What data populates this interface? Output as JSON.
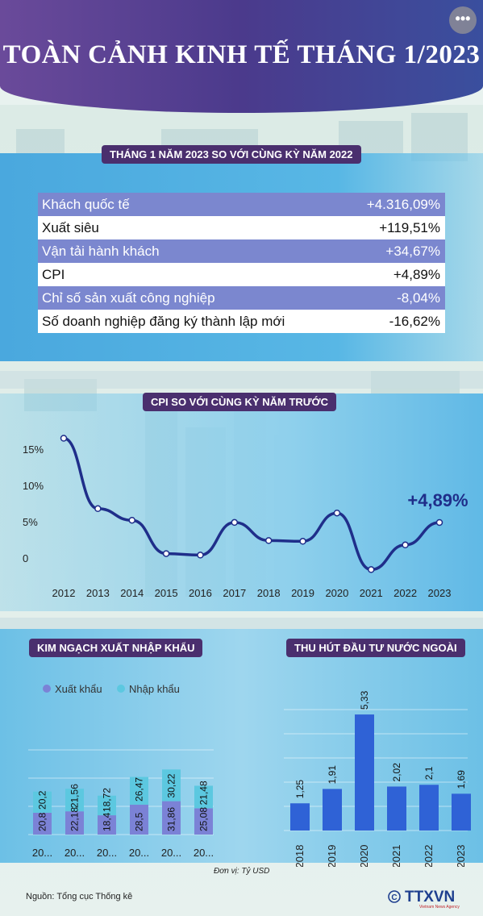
{
  "header": {
    "title": "TOÀN CẢNH KINH TẾ THÁNG 1/2023",
    "more_icon": "more-options-icon"
  },
  "summary": {
    "heading": "THÁNG 1 NĂM 2023 SO VỚI CÙNG KỲ NĂM 2022",
    "rows": [
      {
        "label": "Khách quốc tế",
        "value": "+4.316,09%"
      },
      {
        "label": "Xuất siêu",
        "value": "+119,51%"
      },
      {
        "label": "Vận tải hành khách",
        "value": "+34,67%"
      },
      {
        "label": "CPI",
        "value": "+4,89%"
      },
      {
        "label": "Chỉ số sản xuất công nghiệp",
        "value": "-8,04%"
      },
      {
        "label": "Số doanh nghiệp đăng ký thành lập mới",
        "value": "-16,62%"
      }
    ]
  },
  "chart_data": [
    {
      "type": "line",
      "title": "CPI SO VỚI CÙNG KỲ NĂM TRƯỚC",
      "x": [
        "2012",
        "2013",
        "2014",
        "2015",
        "2016",
        "2017",
        "2018",
        "2019",
        "2020",
        "2021",
        "2022",
        "2023"
      ],
      "series": [
        {
          "values": [
            16.5,
            6.8,
            5.2,
            0.6,
            0.4,
            4.9,
            2.4,
            2.3,
            6.2,
            -1.6,
            1.8,
            4.89
          ],
          "color": "#1f2e8a"
        }
      ],
      "yticks": [
        "15%",
        "10%",
        "5%",
        "0"
      ],
      "ylim": [
        -2,
        18
      ],
      "highlight_label": "+4,89%",
      "grid": false
    },
    {
      "type": "bar",
      "stacked": true,
      "title": "KIM NGẠCH XUẤT NHẬP KHẨU",
      "categories": [
        "20...",
        "20...",
        "20...",
        "20...",
        "20...",
        "20..."
      ],
      "series": [
        {
          "name": "Xuất khẩu",
          "values": [
            20.8,
            22.18,
            18.4,
            28.5,
            31.86,
            25.08
          ],
          "labels": [
            "20,8",
            "22,18",
            "18,4",
            "28,5",
            "31,86",
            "25,08"
          ],
          "color": "#7b82d6"
        },
        {
          "name": "Nhập khẩu",
          "values": [
            20.2,
            21.56,
            18.72,
            26.47,
            30.22,
            21.48
          ],
          "labels": [
            "20,2",
            "21,56",
            "18,72",
            "26,47",
            "30,22",
            "21,48"
          ],
          "color": "#5cc8e0"
        }
      ],
      "legend": "top-left",
      "unit_note": "Đơn vị: Tỷ USD"
    },
    {
      "type": "bar",
      "title": "THU HÚT ĐẦU TƯ NƯỚC NGOÀI",
      "categories": [
        "2018",
        "2019",
        "2020",
        "2021",
        "2022",
        "2023"
      ],
      "values": [
        1.25,
        1.91,
        5.33,
        2.02,
        2.1,
        1.69
      ],
      "labels": [
        "1,25",
        "1,91",
        "5,33",
        "2,02",
        "2,1",
        "1,69"
      ],
      "color": "#2f62d6"
    }
  ],
  "footer": {
    "source": "Nguồn: Tổng cục Thống kê",
    "copyright_icon": "copyright-icon",
    "logo_text": "TTXVN",
    "logo_sub": "Vietnam News Agency"
  }
}
